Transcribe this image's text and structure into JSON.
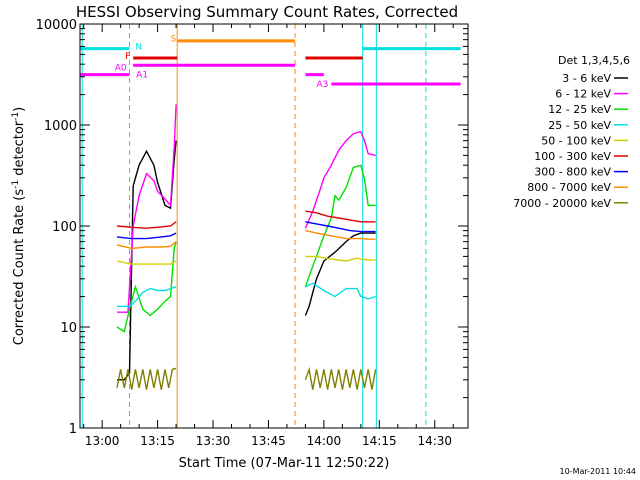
{
  "chart_data": {
    "type": "line",
    "title": "HESSI Observing Summary Count Rates, Corrected",
    "xlabel": "Start Time (07-Mar-11 12:50:22)",
    "ylabel": "Corrected Count Rate (s",
    "ylabel_sup": "-1",
    "ylabel_mid": " detector",
    "ylabel_end": ")",
    "y_scale": "log",
    "xlim_minutes": [
      -6,
      99
    ],
    "ylim": [
      1,
      10000
    ],
    "x_ticks": [
      {
        "t": 0,
        "label": "13:00"
      },
      {
        "t": 15,
        "label": "13:15"
      },
      {
        "t": 30,
        "label": "13:30"
      },
      {
        "t": 45,
        "label": "13:45"
      },
      {
        "t": 60,
        "label": "14:00"
      },
      {
        "t": 75,
        "label": "14:15"
      },
      {
        "t": 90,
        "label": "14:30"
      }
    ],
    "y_ticks": [
      {
        "v": 1,
        "label": "1"
      },
      {
        "v": 10,
        "label": "10"
      },
      {
        "v": 100,
        "label": "100"
      },
      {
        "v": 1000,
        "label": "1000"
      },
      {
        "v": 10000,
        "label": "10000"
      }
    ],
    "legend": {
      "title": "Det 1,3,4,5,6",
      "placement": "right",
      "entries": [
        {
          "label": "3 - 6 keV",
          "color": "#000000"
        },
        {
          "label": "6 - 12 keV",
          "color": "#ff00ff"
        },
        {
          "label": "12 - 25 keV",
          "color": "#00e000"
        },
        {
          "label": "25 - 50 keV",
          "color": "#00e0e0"
        },
        {
          "label": "50 - 100 keV",
          "color": "#d0d000"
        },
        {
          "label": "100 - 300 keV",
          "color": "#e00000"
        },
        {
          "label": "300 - 800 keV",
          "color": "#0000ff"
        },
        {
          "label": "800 - 7000 keV",
          "color": "#ff8c00"
        },
        {
          "label": "7000 - 20000 keV",
          "color": "#808000"
        }
      ]
    },
    "series": [
      {
        "name": "3 - 6 keV",
        "color": "#000000",
        "segments": [
          [
            [
              4,
              3
            ],
            [
              6,
              3
            ],
            [
              7.4,
              3.5
            ],
            [
              8.4,
              250
            ],
            [
              10,
              400
            ],
            [
              12,
              550
            ],
            [
              14,
              400
            ],
            [
              15,
              270
            ],
            [
              17,
              160
            ],
            [
              18.5,
              150
            ],
            [
              19.5,
              450
            ],
            [
              20,
              700
            ]
          ],
          [
            [
              55,
              13
            ],
            [
              56,
              16
            ],
            [
              57,
              22
            ],
            [
              58,
              30
            ],
            [
              60,
              45
            ],
            [
              63,
              55
            ],
            [
              66,
              70
            ],
            [
              68,
              80
            ],
            [
              70,
              85
            ],
            [
              72,
              85
            ],
            [
              74,
              85
            ]
          ]
        ]
      },
      {
        "name": "6 - 12 keV",
        "color": "#ff00ff",
        "segments": [
          [
            [
              4,
              14
            ],
            [
              7,
              14
            ],
            [
              8.4,
              100
            ],
            [
              10,
              200
            ],
            [
              12,
              330
            ],
            [
              14,
              280
            ],
            [
              15,
              220
            ],
            [
              17,
              185
            ],
            [
              18.5,
              160
            ],
            [
              19.5,
              600
            ],
            [
              20,
              1600
            ]
          ],
          [
            [
              55,
              95
            ],
            [
              57,
              140
            ],
            [
              59,
              230
            ],
            [
              60,
              300
            ],
            [
              62,
              400
            ],
            [
              64,
              560
            ],
            [
              66,
              700
            ],
            [
              68,
              820
            ],
            [
              70,
              860
            ],
            [
              71,
              700
            ],
            [
              72,
              520
            ],
            [
              74,
              500
            ]
          ]
        ]
      },
      {
        "name": "12 - 25 keV",
        "color": "#00e000",
        "segments": [
          [
            [
              4,
              10
            ],
            [
              6,
              9
            ],
            [
              7.4,
              15
            ],
            [
              9,
              25
            ],
            [
              11,
              15
            ],
            [
              13,
              13
            ],
            [
              15,
              15
            ],
            [
              17,
              18
            ],
            [
              18.5,
              20
            ],
            [
              19.5,
              60
            ],
            [
              20,
              70
            ]
          ],
          [
            [
              55,
              25
            ],
            [
              57,
              40
            ],
            [
              58,
              50
            ],
            [
              60,
              80
            ],
            [
              62,
              120
            ],
            [
              63,
              200
            ],
            [
              64,
              180
            ],
            [
              66,
              240
            ],
            [
              68,
              380
            ],
            [
              70,
              400
            ],
            [
              71,
              290
            ],
            [
              72,
              160
            ],
            [
              74,
              160
            ]
          ]
        ]
      },
      {
        "name": "25 - 50 keV",
        "color": "#00e0e0",
        "segments": [
          [
            [
              4,
              16
            ],
            [
              7.4,
              16
            ],
            [
              9,
              18
            ],
            [
              11,
              22
            ],
            [
              13,
              24
            ],
            [
              15,
              23
            ],
            [
              17,
              23
            ],
            [
              18.5,
              24
            ],
            [
              20,
              25
            ]
          ],
          [
            [
              55,
              25
            ],
            [
              57,
              27
            ],
            [
              60,
              23
            ],
            [
              63,
              20
            ],
            [
              66,
              24
            ],
            [
              69,
              24
            ],
            [
              70,
              20
            ],
            [
              72,
              19
            ],
            [
              74,
              20
            ]
          ]
        ]
      },
      {
        "name": "50 - 100 keV",
        "color": "#d0d000",
        "segments": [
          [
            [
              4,
              45
            ],
            [
              8,
              42
            ],
            [
              12,
              42
            ],
            [
              16,
              42
            ],
            [
              18.5,
              42
            ],
            [
              20,
              45
            ]
          ],
          [
            [
              55,
              50
            ],
            [
              58,
              50
            ],
            [
              62,
              47
            ],
            [
              66,
              45
            ],
            [
              69,
              48
            ],
            [
              70,
              47
            ],
            [
              72,
              46
            ],
            [
              74,
              46
            ]
          ]
        ]
      },
      {
        "name": "100 - 300 keV",
        "color": "#e00000",
        "segments": [
          [
            [
              4,
              100
            ],
            [
              8,
              97
            ],
            [
              12,
              95
            ],
            [
              16,
              98
            ],
            [
              18.5,
              100
            ],
            [
              20,
              110
            ]
          ],
          [
            [
              55,
              140
            ],
            [
              58,
              135
            ],
            [
              61,
              125
            ],
            [
              64,
              120
            ],
            [
              67,
              115
            ],
            [
              70,
              110
            ],
            [
              72,
              110
            ],
            [
              74,
              110
            ]
          ]
        ]
      },
      {
        "name": "300 - 800 keV",
        "color": "#0000ff",
        "segments": [
          [
            [
              4,
              78
            ],
            [
              8,
              75
            ],
            [
              12,
              75
            ],
            [
              16,
              78
            ],
            [
              18.5,
              80
            ],
            [
              20,
              85
            ]
          ],
          [
            [
              55,
              110
            ],
            [
              58,
              105
            ],
            [
              61,
              100
            ],
            [
              64,
              95
            ],
            [
              67,
              90
            ],
            [
              70,
              88
            ],
            [
              72,
              88
            ],
            [
              74,
              88
            ]
          ]
        ]
      },
      {
        "name": "800 - 7000 keV",
        "color": "#ff8c00",
        "segments": [
          [
            [
              4,
              65
            ],
            [
              8,
              60
            ],
            [
              12,
              62
            ],
            [
              16,
              62
            ],
            [
              18.5,
              63
            ],
            [
              20,
              70
            ]
          ],
          [
            [
              55,
              90
            ],
            [
              58,
              85
            ],
            [
              62,
              80
            ],
            [
              66,
              75
            ],
            [
              70,
              75
            ],
            [
              72,
              74
            ],
            [
              74,
              74
            ]
          ]
        ]
      },
      {
        "name": "7000 - 20000 keV",
        "color": "#808000",
        "segments": [
          [
            [
              4,
              2.5
            ],
            [
              5,
              3.8
            ],
            [
              6,
              2.5
            ],
            [
              7,
              3.8
            ],
            [
              8,
              2.4
            ],
            [
              9,
              3.8
            ],
            [
              10,
              2.5
            ],
            [
              11,
              3.8
            ],
            [
              12,
              2.4
            ],
            [
              13,
              3.8
            ],
            [
              14,
              2.5
            ],
            [
              15,
              3.8
            ],
            [
              16,
              2.4
            ],
            [
              17,
              3.8
            ],
            [
              18,
              2.5
            ],
            [
              19,
              3.8
            ],
            [
              20,
              3.9
            ]
          ],
          [
            [
              55,
              3
            ],
            [
              56,
              3.8
            ],
            [
              57,
              2.4
            ],
            [
              58,
              3.8
            ],
            [
              59,
              2.5
            ],
            [
              60,
              3.8
            ],
            [
              61,
              2.4
            ],
            [
              62,
              3.8
            ],
            [
              63,
              2.5
            ],
            [
              64,
              3.8
            ],
            [
              65,
              2.4
            ],
            [
              66,
              3.8
            ],
            [
              67,
              2.5
            ],
            [
              68,
              3.8
            ],
            [
              69,
              2.4
            ],
            [
              70,
              3.8
            ],
            [
              71,
              2.5
            ],
            [
              72,
              3.8
            ],
            [
              73,
              2.4
            ],
            [
              74,
              3.8
            ]
          ]
        ]
      }
    ],
    "event_lines": [
      {
        "t": -5.4,
        "color": "#00e0e0",
        "style": "solid"
      },
      {
        "t": 7.4,
        "color": "#00e0e0",
        "style": "dashed"
      },
      {
        "t": 20.3,
        "color": "#ff8c00",
        "style": "solid"
      },
      {
        "t": 52.2,
        "color": "#ff8c00",
        "style": "dashed"
      },
      {
        "t": 70.5,
        "color": "#00e0e0",
        "style": "solid"
      },
      {
        "t": 74.2,
        "color": "#00e0e0",
        "style": "solid"
      },
      {
        "t": 87.6,
        "color": "#00e0e0",
        "style": "dashed"
      }
    ],
    "state_bars": [
      {
        "label": "N",
        "color": "#00e0e0",
        "y": 5700,
        "segments": [
          [
            -6,
            7.4
          ],
          [
            70.5,
            97
          ]
        ],
        "label_at": [
          9,
          6000
        ]
      },
      {
        "label": "S",
        "color": "#ff8c00",
        "y": 6800,
        "segments": [
          [
            20.3,
            52.2
          ]
        ],
        "label_at": [
          18.5,
          7200
        ]
      },
      {
        "label": "F",
        "color": "#e00000",
        "y": 4600,
        "segments": [
          [
            8.4,
            20.3
          ],
          [
            55,
            70.5
          ]
        ],
        "label_at": [
          6.2,
          4800
        ]
      },
      {
        "label": "A0",
        "color": "#ff00ff",
        "y": 3900,
        "segments": [
          [
            8.4,
            20.3
          ],
          [
            20.3,
            52.2
          ]
        ],
        "label_at": [
          3.4,
          3700
        ]
      },
      {
        "label": "A1",
        "color": "#ff00ff",
        "y": 3150,
        "segments": [
          [
            -6,
            7.4
          ],
          [
            55,
            60
          ]
        ],
        "label_at": [
          9.2,
          3150
        ]
      },
      {
        "label": "A3",
        "color": "#ff00ff",
        "y": 2550,
        "segments": [
          [
            62,
            74.2
          ],
          [
            74.2,
            97
          ]
        ],
        "label_at": [
          58,
          2550
        ]
      }
    ],
    "grid": false
  },
  "timestamp": "10-Mar-2011 10:44"
}
